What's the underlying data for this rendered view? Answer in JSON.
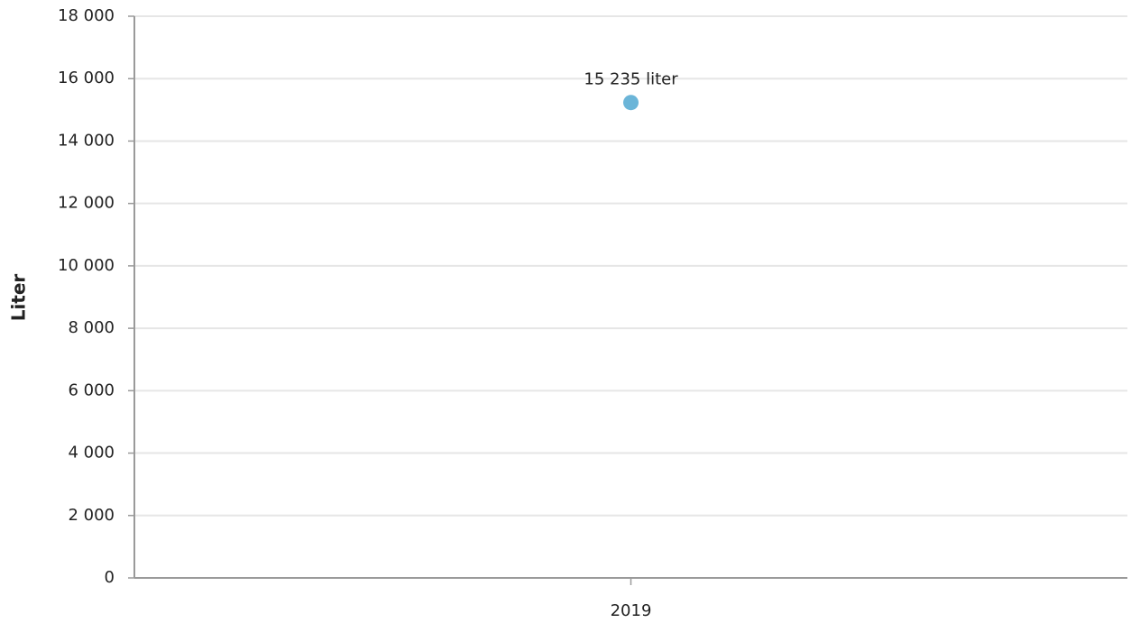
{
  "chart_data": {
    "type": "line",
    "y_label": "Liter",
    "categories": [
      "2019"
    ],
    "values": [
      15235
    ],
    "value_labels": [
      "15 235 liter"
    ],
    "color": "#6bb5d8",
    "ylim": [
      0,
      18000
    ],
    "yticks": [
      0,
      {
        "value": 2000,
        "label": "2 000"
      },
      {
        "value": 4000,
        "label": "4 000"
      },
      {
        "value": 6000,
        "label": "6 000"
      },
      {
        "value": 8000,
        "label": "8 000"
      },
      {
        "value": 10000,
        "label": "10 000"
      },
      {
        "value": 12000,
        "label": "12 000"
      },
      {
        "value": 14000,
        "label": "14 000"
      },
      {
        "value": 16000,
        "label": "16 000"
      },
      {
        "value": 18000,
        "label": "18 000"
      }
    ],
    "grid": true
  }
}
